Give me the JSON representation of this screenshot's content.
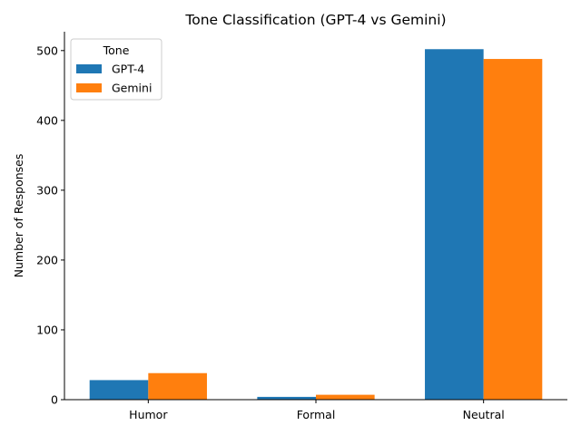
{
  "chart_data": {
    "type": "bar",
    "title": "Tone Classification (GPT-4 vs Gemini)",
    "xlabel": "",
    "ylabel": "Number of Responses",
    "categories": [
      "Humor",
      "Formal",
      "Neutral"
    ],
    "series": [
      {
        "name": "GPT-4",
        "color": "#1f77b4",
        "values": [
          28,
          4,
          502
        ]
      },
      {
        "name": "Gemini",
        "color": "#ff7f0e",
        "values": [
          38,
          7,
          488
        ]
      }
    ],
    "ylim": [
      0,
      527
    ],
    "yticks": [
      0,
      100,
      200,
      300,
      400,
      500
    ],
    "legend": {
      "title": "Tone",
      "placement": "top-left"
    },
    "grid": false
  }
}
